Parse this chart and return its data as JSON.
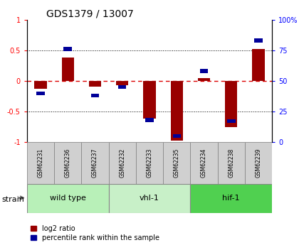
{
  "title": "GDS1379 / 13007",
  "samples": [
    "GSM62231",
    "GSM62236",
    "GSM62237",
    "GSM62232",
    "GSM62233",
    "GSM62235",
    "GSM62234",
    "GSM62238",
    "GSM62239"
  ],
  "log2_ratio": [
    -0.13,
    0.38,
    -0.1,
    -0.07,
    -0.62,
    -0.97,
    0.05,
    -0.75,
    0.52
  ],
  "percentile_rank": [
    40,
    76,
    38,
    45,
    18,
    5,
    58,
    17,
    83
  ],
  "groups": [
    {
      "label": "wild type",
      "start": 0,
      "end": 3,
      "color": "#b8f0b8"
    },
    {
      "label": "vhl-1",
      "start": 3,
      "end": 6,
      "color": "#c8f0c8"
    },
    {
      "label": "hif-1",
      "start": 6,
      "end": 9,
      "color": "#50d050"
    }
  ],
  "ylim_left": [
    -1,
    1
  ],
  "ylim_right": [
    0,
    100
  ],
  "yticks_left": [
    -1,
    -0.5,
    0,
    0.5,
    1
  ],
  "yticks_right": [
    0,
    25,
    50,
    75,
    100
  ],
  "bar_color_red": "#990000",
  "bar_color_blue": "#000099",
  "hline_zero_color": "#dd0000",
  "dotted_line_color": "#000000",
  "bg_color": "#ffffff",
  "legend_red_label": "log2 ratio",
  "legend_blue_label": "percentile rank within the sample",
  "strain_label": "strain"
}
